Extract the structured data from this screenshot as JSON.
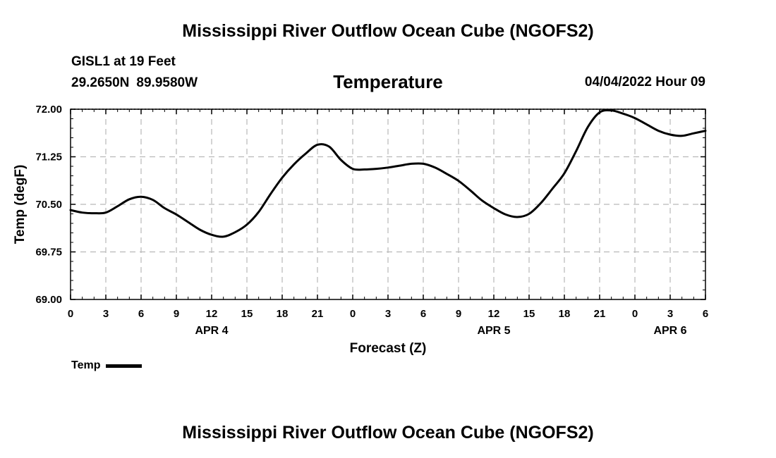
{
  "title_top": "Mississippi River Outflow Ocean Cube (NGOFS2)",
  "title_bottom": "Mississippi River Outflow Ocean Cube (NGOFS2)",
  "station": "GISL1 at 19 Feet",
  "lat": "29.2650N",
  "lon": "89.9580W",
  "timestamp": "04/04/2022 Hour 09",
  "legend": {
    "label": "Temp",
    "color": "#000000"
  },
  "chart_data": {
    "type": "line",
    "title": "Temperature",
    "xlabel": "Forecast (Z)",
    "ylabel": "Temp (degF)",
    "grid": true,
    "ylim": [
      69.0,
      72.0
    ],
    "xlim": [
      0,
      54
    ],
    "yticks": [
      "69.00",
      "69.75",
      "70.50",
      "71.25",
      "72.00"
    ],
    "xticks": [
      {
        "x": 0,
        "label": "0"
      },
      {
        "x": 3,
        "label": "3"
      },
      {
        "x": 6,
        "label": "6"
      },
      {
        "x": 9,
        "label": "9"
      },
      {
        "x": 12,
        "label": "12"
      },
      {
        "x": 15,
        "label": "15"
      },
      {
        "x": 18,
        "label": "18"
      },
      {
        "x": 21,
        "label": "21"
      },
      {
        "x": 24,
        "label": "0"
      },
      {
        "x": 27,
        "label": "3"
      },
      {
        "x": 30,
        "label": "6"
      },
      {
        "x": 33,
        "label": "9"
      },
      {
        "x": 36,
        "label": "12"
      },
      {
        "x": 39,
        "label": "15"
      },
      {
        "x": 42,
        "label": "18"
      },
      {
        "x": 45,
        "label": "21"
      },
      {
        "x": 48,
        "label": "0"
      },
      {
        "x": 51,
        "label": "3"
      },
      {
        "x": 54,
        "label": "6"
      }
    ],
    "date_labels": [
      {
        "x": 12,
        "label": "APR 4"
      },
      {
        "x": 36,
        "label": "APR 5"
      },
      {
        "x": 51,
        "label": "APR 6"
      }
    ],
    "series": [
      {
        "name": "Temp",
        "x": [
          0,
          1,
          2,
          3,
          4,
          5,
          6,
          7,
          8,
          9,
          10,
          11,
          12,
          13,
          14,
          15,
          16,
          17,
          18,
          19,
          20,
          21,
          22,
          23,
          24,
          25,
          26,
          27,
          28,
          29,
          30,
          31,
          32,
          33,
          34,
          35,
          36,
          37,
          38,
          39,
          40,
          41,
          42,
          43,
          44,
          45,
          46,
          47,
          48,
          49,
          50,
          51,
          52,
          53,
          54
        ],
        "values": [
          70.41,
          70.37,
          70.36,
          70.37,
          70.47,
          70.58,
          70.62,
          70.57,
          70.44,
          70.34,
          70.22,
          70.1,
          70.02,
          69.99,
          70.06,
          70.18,
          70.38,
          70.66,
          70.92,
          71.13,
          71.3,
          71.44,
          71.41,
          71.2,
          71.06,
          71.05,
          71.06,
          71.08,
          71.11,
          71.14,
          71.14,
          71.08,
          70.98,
          70.87,
          70.72,
          70.56,
          70.44,
          70.34,
          70.3,
          70.35,
          70.52,
          70.75,
          70.99,
          71.34,
          71.72,
          71.95,
          71.98,
          71.93,
          71.86,
          71.76,
          71.66,
          71.6,
          71.58,
          71.62,
          71.66
        ]
      }
    ]
  }
}
